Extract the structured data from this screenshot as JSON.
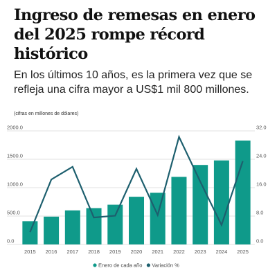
{
  "header": {
    "title": "Ingreso de remesas en enero del 2025 rompe récord histórico",
    "subtitle": "En los últimos 10 años, es la primera vez que se refleja una cifra mayor a US$1 mil 800 millones.",
    "note": "(cifras en millones de dólares)"
  },
  "colors": {
    "bars": "#0f9a8a",
    "line": "#1d5f6e",
    "grid": "#d9d9d9",
    "text": "#111111"
  },
  "chart_data": {
    "type": "bar",
    "categories": [
      "2015",
      "2016",
      "2017",
      "2018",
      "2019",
      "2020",
      "2021",
      "2022",
      "2023",
      "2024",
      "2025"
    ],
    "series": [
      {
        "name": "Enero de cada año",
        "type": "bar",
        "axis": "left",
        "values": [
          410,
          490,
          600,
          640,
          700,
          840,
          910,
          1190,
          1400,
          1480,
          1830
        ]
      },
      {
        "name": "Variación %",
        "type": "line",
        "axis": "right",
        "values": [
          3.5,
          18.3,
          21.9,
          7.6,
          8.1,
          21.3,
          8.3,
          30.3,
          17.7,
          5.5,
          23.5
        ]
      }
    ],
    "y_left": {
      "range": [
        0,
        2000
      ],
      "ticks": [
        0,
        500,
        1000,
        1500,
        2000
      ],
      "tick_labels": [
        "0.0",
        "500.0",
        "1000.0",
        "1500.0",
        "2000.0"
      ]
    },
    "y_right": {
      "range": [
        0,
        32
      ],
      "ticks": [
        0,
        8,
        16,
        24,
        32
      ],
      "tick_labels": [
        "0.0",
        "8.0",
        "16.0",
        "24.0",
        "32.0"
      ]
    },
    "grid": true,
    "legend_position": "bottom"
  }
}
